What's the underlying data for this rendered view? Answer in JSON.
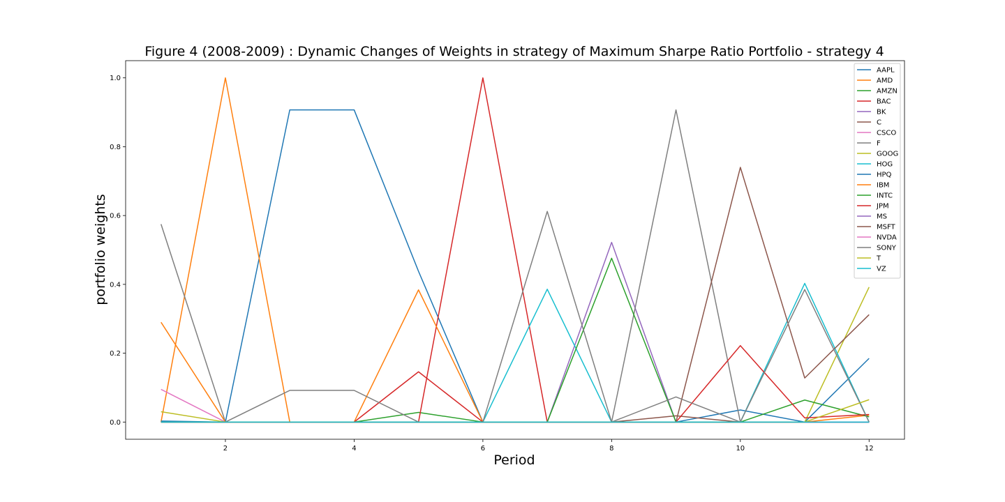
{
  "chart_data": {
    "type": "line",
    "title": "Figure 4 (2008-2009) : Dynamic Changes of Weights in strategy of Maximum Sharpe Ratio Portfolio - strategy 4",
    "xlabel": "Period",
    "ylabel": "portfolio weights",
    "xlim": [
      0.45,
      12.55
    ],
    "ylim": [
      -0.05,
      1.05
    ],
    "xticks": [
      2,
      4,
      6,
      8,
      10,
      12
    ],
    "yticks": [
      0.0,
      0.2,
      0.4,
      0.6,
      0.8,
      1.0
    ],
    "xtick_labels": [
      "2",
      "4",
      "6",
      "8",
      "10",
      "12"
    ],
    "ytick_labels": [
      "0.0",
      "0.2",
      "0.4",
      "0.6",
      "0.8",
      "1.0"
    ],
    "grid": false,
    "legend_position": "top-right",
    "x": [
      1,
      2,
      3,
      4,
      5,
      6,
      7,
      8,
      9,
      10,
      11,
      12
    ],
    "series": [
      {
        "name": "AAPL",
        "color": "#1f77b4",
        "values": [
          0.0,
          0.0,
          0.907,
          0.907,
          0.438,
          0.0,
          0.0,
          0.0,
          0.0,
          0.035,
          0.0,
          0.185
        ]
      },
      {
        "name": "AMD",
        "color": "#ff7f0e",
        "values": [
          0.0,
          1.0,
          0.0,
          0.0,
          0.0,
          0.0,
          0.0,
          0.0,
          0.0,
          0.0,
          0.0,
          0.0
        ]
      },
      {
        "name": "AMZN",
        "color": "#2ca02c",
        "values": [
          0.0,
          0.0,
          0.0,
          0.0,
          0.028,
          0.0,
          0.0,
          0.0,
          0.0,
          0.0,
          0.0,
          0.0
        ]
      },
      {
        "name": "BAC",
        "color": "#d62728",
        "values": [
          0.0,
          0.0,
          0.0,
          0.0,
          0.0,
          1.0,
          0.0,
          0.0,
          0.0,
          0.0,
          0.0,
          0.0
        ]
      },
      {
        "name": "BK",
        "color": "#9467bd",
        "values": [
          0.0,
          0.0,
          0.0,
          0.0,
          0.0,
          0.0,
          0.0,
          0.522,
          0.0,
          0.0,
          0.0,
          0.0
        ]
      },
      {
        "name": "C",
        "color": "#8c564b",
        "values": [
          0.0,
          0.0,
          0.0,
          0.0,
          0.0,
          0.0,
          0.0,
          0.0,
          0.018,
          0.0,
          0.0,
          0.0
        ]
      },
      {
        "name": "CSCO",
        "color": "#e377c2",
        "values": [
          0.095,
          0.0,
          0.0,
          0.0,
          0.0,
          0.0,
          0.0,
          0.0,
          0.0,
          0.0,
          0.0,
          0.0
        ]
      },
      {
        "name": "F",
        "color": "#7f7f7f",
        "values": [
          0.575,
          0.0,
          0.0,
          0.0,
          0.0,
          0.0,
          0.0,
          0.0,
          0.907,
          0.0,
          0.0,
          0.0
        ]
      },
      {
        "name": "GOOG",
        "color": "#bcbd22",
        "values": [
          0.03,
          0.0,
          0.0,
          0.0,
          0.0,
          0.0,
          0.0,
          0.0,
          0.0,
          0.0,
          0.0,
          0.392
        ]
      },
      {
        "name": "HOG",
        "color": "#17becf",
        "values": [
          0.0,
          0.0,
          0.0,
          0.0,
          0.0,
          0.0,
          0.386,
          0.0,
          0.0,
          0.0,
          0.403,
          0.0
        ]
      },
      {
        "name": "HPQ",
        "color": "#1f77b4",
        "values": [
          0.003,
          0.0,
          0.0,
          0.0,
          0.0,
          0.0,
          0.0,
          0.0,
          0.0,
          0.0,
          0.0,
          0.0
        ]
      },
      {
        "name": "IBM",
        "color": "#ff7f0e",
        "values": [
          0.29,
          0.0,
          0.0,
          0.0,
          0.384,
          0.0,
          0.0,
          0.0,
          0.0,
          0.0,
          0.0,
          0.02
        ]
      },
      {
        "name": "INTC",
        "color": "#2ca02c",
        "values": [
          0.0,
          0.0,
          0.0,
          0.0,
          0.0,
          0.0,
          0.0,
          0.476,
          0.0,
          0.0,
          0.064,
          0.015
        ]
      },
      {
        "name": "JPM",
        "color": "#d62728",
        "values": [
          0.0,
          0.0,
          0.0,
          0.0,
          0.146,
          0.0,
          0.0,
          0.0,
          0.0,
          0.222,
          0.012,
          0.022
        ]
      },
      {
        "name": "MS",
        "color": "#9467bd",
        "values": [
          0.0,
          0.0,
          0.0,
          0.0,
          0.0,
          0.0,
          0.0,
          0.0,
          0.0,
          0.0,
          0.0,
          0.0
        ]
      },
      {
        "name": "MSFT",
        "color": "#8c564b",
        "values": [
          0.0,
          0.0,
          0.0,
          0.0,
          0.0,
          0.0,
          0.0,
          0.0,
          0.0,
          0.74,
          0.128,
          0.312
        ]
      },
      {
        "name": "NVDA",
        "color": "#e377c2",
        "values": [
          0.0,
          0.0,
          0.0,
          0.0,
          0.0,
          0.0,
          0.0,
          0.0,
          0.0,
          0.0,
          0.0,
          0.0
        ]
      },
      {
        "name": "SONY",
        "color": "#7f7f7f",
        "values": [
          0.0,
          0.0,
          0.092,
          0.092,
          0.0,
          0.0,
          0.612,
          0.0,
          0.073,
          0.0,
          0.385,
          0.0
        ]
      },
      {
        "name": "T",
        "color": "#bcbd22",
        "values": [
          0.0,
          0.0,
          0.0,
          0.0,
          0.0,
          0.0,
          0.0,
          0.0,
          0.0,
          0.0,
          0.0,
          0.065
        ]
      },
      {
        "name": "VZ",
        "color": "#17becf",
        "values": [
          0.0,
          0.0,
          0.0,
          0.0,
          0.0,
          0.0,
          0.0,
          0.0,
          0.0,
          0.0,
          0.0,
          0.0
        ]
      }
    ]
  }
}
